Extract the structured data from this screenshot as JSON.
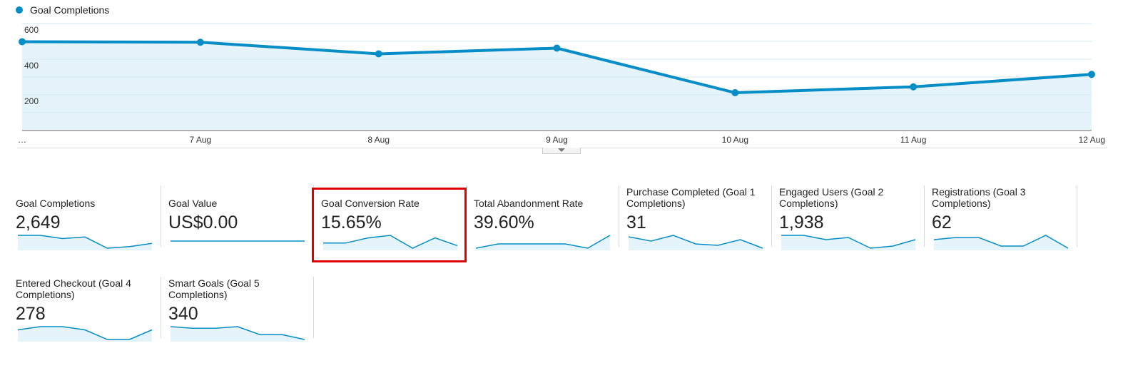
{
  "colors": {
    "series": "#058dc7",
    "fill": "#e5f3fa",
    "grid": "#ececec",
    "axis": "#999999",
    "highlight": "#e00000"
  },
  "chart_data": {
    "type": "line",
    "title": "",
    "legend": {
      "label": "Goal Completions",
      "placement": "top-left"
    },
    "x": [
      "…",
      "7 Aug",
      "8 Aug",
      "9 Aug",
      "10 Aug",
      "11 Aug",
      "12 Aug"
    ],
    "series": [
      {
        "name": "Goal Completions",
        "values": [
          498,
          495,
          430,
          462,
          212,
          245,
          315
        ]
      }
    ],
    "yticks": [
      200,
      400,
      600
    ],
    "ylim": [
      0,
      600
    ],
    "grid": true,
    "area_fill": true
  },
  "scorecards": [
    {
      "label": "Goal Completions",
      "value": "2,649",
      "spark": [
        10,
        10,
        8,
        9,
        2,
        3,
        5
      ]
    },
    {
      "label": "Goal Value",
      "value": "US$0.00",
      "spark": [
        0,
        0,
        0,
        0,
        0,
        0,
        0
      ]
    },
    {
      "label": "Goal Conversion Rate",
      "value": "15.65%",
      "spark": [
        6,
        6,
        8,
        9,
        4,
        8,
        5
      ],
      "highlighted": true
    },
    {
      "label": "Total Abandonment Rate",
      "value": "39.60%",
      "spark": [
        6,
        7,
        7,
        7,
        7,
        6,
        9
      ]
    },
    {
      "label": "Purchase Completed (Goal 1 Completions)",
      "value": "31",
      "spark": [
        8,
        5,
        9,
        3,
        2,
        6,
        0
      ]
    },
    {
      "label": "Engaged Users (Goal 2 Completions)",
      "value": "1,938",
      "spark": [
        9,
        9,
        7,
        8,
        3,
        4,
        7
      ]
    },
    {
      "label": "Registrations (Goal 3 Completions)",
      "value": "62",
      "spark": [
        7,
        8,
        8,
        4,
        4,
        9,
        3
      ]
    },
    {
      "label": "Entered Checkout (Goal 4 Completions)",
      "value": "278",
      "spark": [
        8,
        9,
        9,
        8,
        5,
        5,
        8
      ]
    },
    {
      "label": "Smart Goals (Goal 5 Completions)",
      "value": "340",
      "spark": [
        8,
        7,
        7,
        8,
        3,
        3,
        0
      ]
    }
  ]
}
